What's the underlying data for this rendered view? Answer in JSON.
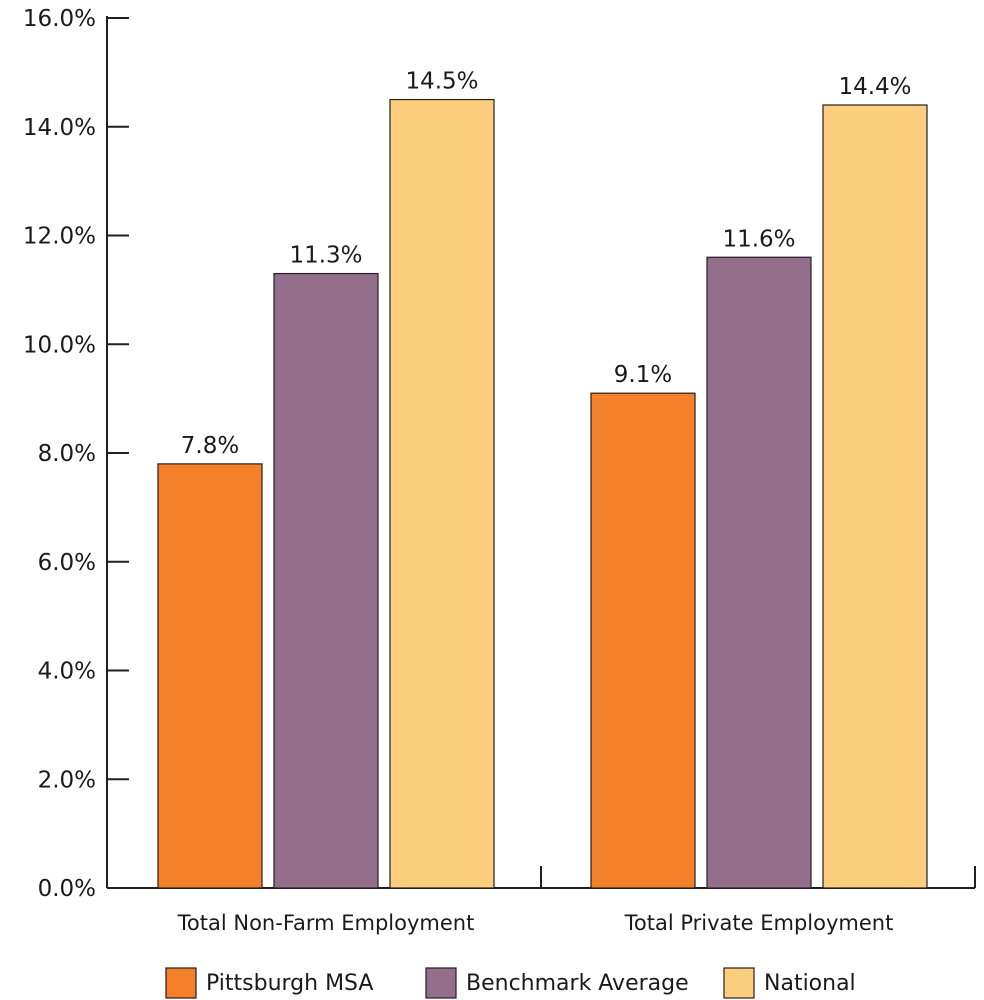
{
  "chart_data": {
    "type": "bar",
    "categories": [
      "Total Non-Farm Employment",
      "Total Private Employment"
    ],
    "series": [
      {
        "name": "Pittsburgh MSA",
        "values": [
          7.8,
          9.1
        ],
        "labels": [
          "7.8%",
          "9.1%"
        ],
        "color": "#F4812A"
      },
      {
        "name": "Benchmark Average",
        "values": [
          11.3,
          11.6
        ],
        "labels": [
          "11.3%",
          "11.6%"
        ],
        "color": "#946F8C"
      },
      {
        "name": "National",
        "values": [
          14.5,
          14.4
        ],
        "labels": [
          "14.5%",
          "14.4%"
        ],
        "color": "#FDCE7E"
      }
    ],
    "y_ticks": [
      {
        "value": 0,
        "label": "0.0%"
      },
      {
        "value": 2,
        "label": "2.0%"
      },
      {
        "value": 4,
        "label": "4.0%"
      },
      {
        "value": 6,
        "label": "6.0%"
      },
      {
        "value": 8,
        "label": "8.0%"
      },
      {
        "value": 10,
        "label": "10.0%"
      },
      {
        "value": 12,
        "label": "12.0%"
      },
      {
        "value": 14,
        "label": "14.0%"
      },
      {
        "value": 16,
        "label": "16.0%"
      }
    ],
    "ylim": [
      0,
      16
    ],
    "title": "",
    "xlabel": "",
    "ylabel": "",
    "grid": false,
    "legend_position": "bottom"
  }
}
